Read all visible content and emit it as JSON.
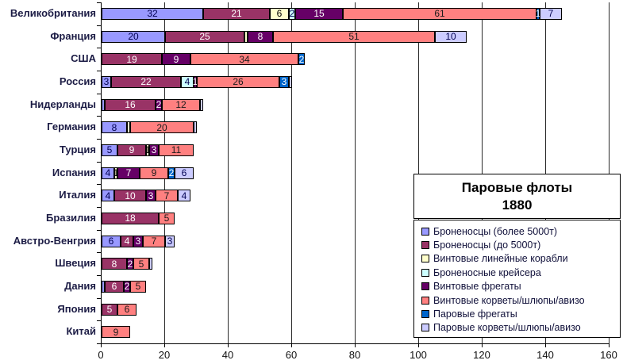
{
  "title": {
    "line1": "Паровые флоты",
    "line2": "1880"
  },
  "chart_data": {
    "type": "bar",
    "orientation": "horizontal-stacked",
    "title": "Паровые флоты 1880",
    "xlabel": "",
    "ylabel": "",
    "grid": true,
    "legend_position": "bottom-right",
    "axis": {
      "min": 0,
      "max": 160,
      "step": 20,
      "tick_labels": [
        "0",
        "20",
        "40",
        "60",
        "80",
        "100",
        "120",
        "140",
        "160"
      ]
    },
    "series": [
      {
        "name": "Броненосцы (более 5000т)",
        "color": "#9999FF",
        "label_color": "#000050"
      },
      {
        "name": "Броненосцы (до 5000т)",
        "color": "#993366",
        "label_color": "#FFFFFF"
      },
      {
        "name": "Винтовые линейные корабли",
        "color": "#FFFFCC",
        "label_color": "#000000"
      },
      {
        "name": "Броненосные крейсера",
        "color": "#CCFFFF",
        "label_color": "#000050"
      },
      {
        "name": "Винтовые фрегаты",
        "color": "#660066",
        "label_color": "#FFFFFF"
      },
      {
        "name": "Винтовые корветы/шлюпы/авизо",
        "color": "#FF8080",
        "label_color": "#1a1a1a"
      },
      {
        "name": "Паровые фрегаты",
        "color": "#0066CC",
        "label_color": "#FFFFFF"
      },
      {
        "name": "Паровые корветы/шлюпы/авизо",
        "color": "#CCCCFF",
        "label_color": "#000050"
      }
    ],
    "categories": [
      "Великобритания",
      "Франция",
      "США",
      "Россия",
      "Нидерланды",
      "Германия",
      "Турция",
      "Испания",
      "Италия",
      "Бразилия",
      "Австро-Венгрия",
      "Швеция",
      "Дания",
      "Япония",
      "Китай"
    ],
    "rows": [
      {
        "category": "Великобритания",
        "segments": [
          {
            "series": 0,
            "value": 32,
            "show_label": true
          },
          {
            "series": 1,
            "value": 21,
            "show_label": true
          },
          {
            "series": 2,
            "value": 6,
            "show_label": true
          },
          {
            "series": 3,
            "value": 2,
            "show_label": true
          },
          {
            "series": 4,
            "value": 15,
            "show_label": true
          },
          {
            "series": 5,
            "value": 61,
            "show_label": true
          },
          {
            "series": 6,
            "value": 1,
            "show_label": true
          },
          {
            "series": 7,
            "value": 7,
            "show_label": true
          }
        ]
      },
      {
        "category": "Франция",
        "segments": [
          {
            "series": 0,
            "value": 20,
            "show_label": true
          },
          {
            "series": 1,
            "value": 25,
            "show_label": true
          },
          {
            "series": 2,
            "value": 1,
            "show_label": false
          },
          {
            "series": 4,
            "value": 8,
            "show_label": true
          },
          {
            "series": 5,
            "value": 51,
            "show_label": true
          },
          {
            "series": 7,
            "value": 10,
            "show_label": true
          }
        ]
      },
      {
        "category": "США",
        "segments": [
          {
            "series": 1,
            "value": 19,
            "show_label": true
          },
          {
            "series": 4,
            "value": 9,
            "show_label": true
          },
          {
            "series": 5,
            "value": 34,
            "show_label": true
          },
          {
            "series": 6,
            "value": 2,
            "show_label": true
          }
        ]
      },
      {
        "category": "Россия",
        "segments": [
          {
            "series": 0,
            "value": 3,
            "show_label": true
          },
          {
            "series": 1,
            "value": 22,
            "show_label": true
          },
          {
            "series": 3,
            "value": 4,
            "show_label": true
          },
          {
            "series": 4,
            "value": 1,
            "show_label": true
          },
          {
            "series": 5,
            "value": 26,
            "show_label": true
          },
          {
            "series": 6,
            "value": 3,
            "show_label": true
          },
          {
            "series": 7,
            "value": 1,
            "show_label": false
          }
        ]
      },
      {
        "category": "Нидерланды",
        "segments": [
          {
            "series": 0,
            "value": 1,
            "show_label": false
          },
          {
            "series": 1,
            "value": 16,
            "show_label": true
          },
          {
            "series": 4,
            "value": 2,
            "show_label": true
          },
          {
            "series": 5,
            "value": 12,
            "show_label": true
          },
          {
            "series": 7,
            "value": 1,
            "show_label": false
          }
        ]
      },
      {
        "category": "Германия",
        "segments": [
          {
            "series": 0,
            "value": 8,
            "show_label": true
          },
          {
            "series": 2,
            "value": 1,
            "show_label": false
          },
          {
            "series": 5,
            "value": 20,
            "show_label": true
          },
          {
            "series": 7,
            "value": 1,
            "show_label": false
          }
        ]
      },
      {
        "category": "Турция",
        "segments": [
          {
            "series": 0,
            "value": 5,
            "show_label": true
          },
          {
            "series": 1,
            "value": 9,
            "show_label": true
          },
          {
            "series": 2,
            "value": 1,
            "show_label": true
          },
          {
            "series": 4,
            "value": 3,
            "show_label": true
          },
          {
            "series": 5,
            "value": 11,
            "show_label": true
          }
        ]
      },
      {
        "category": "Испания",
        "segments": [
          {
            "series": 0,
            "value": 4,
            "show_label": true
          },
          {
            "series": 2,
            "value": 1,
            "show_label": true
          },
          {
            "series": 4,
            "value": 7,
            "show_label": true
          },
          {
            "series": 5,
            "value": 9,
            "show_label": true
          },
          {
            "series": 6,
            "value": 2,
            "show_label": true
          },
          {
            "series": 7,
            "value": 6,
            "show_label": true
          }
        ]
      },
      {
        "category": "Италия",
        "segments": [
          {
            "series": 0,
            "value": 4,
            "show_label": true
          },
          {
            "series": 1,
            "value": 10,
            "show_label": true
          },
          {
            "series": 4,
            "value": 3,
            "show_label": true
          },
          {
            "series": 5,
            "value": 7,
            "show_label": true
          },
          {
            "series": 7,
            "value": 4,
            "show_label": true
          }
        ]
      },
      {
        "category": "Бразилия",
        "segments": [
          {
            "series": 1,
            "value": 18,
            "show_label": true
          },
          {
            "series": 5,
            "value": 5,
            "show_label": true
          }
        ]
      },
      {
        "category": "Австро-Венгрия",
        "segments": [
          {
            "series": 0,
            "value": 6,
            "show_label": true
          },
          {
            "series": 1,
            "value": 4,
            "show_label": true
          },
          {
            "series": 4,
            "value": 3,
            "show_label": true
          },
          {
            "series": 5,
            "value": 7,
            "show_label": true
          },
          {
            "series": 7,
            "value": 3,
            "show_label": true
          }
        ]
      },
      {
        "category": "Швеция",
        "segments": [
          {
            "series": 1,
            "value": 8,
            "show_label": true
          },
          {
            "series": 4,
            "value": 2,
            "show_label": true
          },
          {
            "series": 5,
            "value": 5,
            "show_label": true
          },
          {
            "series": 7,
            "value": 1,
            "show_label": false
          }
        ]
      },
      {
        "category": "Дания",
        "segments": [
          {
            "series": 0,
            "value": 1,
            "show_label": false
          },
          {
            "series": 1,
            "value": 6,
            "show_label": true
          },
          {
            "series": 4,
            "value": 2,
            "show_label": true
          },
          {
            "series": 5,
            "value": 5,
            "show_label": true
          }
        ]
      },
      {
        "category": "Япония",
        "segments": [
          {
            "series": 1,
            "value": 5,
            "show_label": true
          },
          {
            "series": 5,
            "value": 6,
            "show_label": true
          }
        ]
      },
      {
        "category": "Китай",
        "segments": [
          {
            "series": 5,
            "value": 9,
            "show_label": true
          }
        ]
      }
    ]
  }
}
